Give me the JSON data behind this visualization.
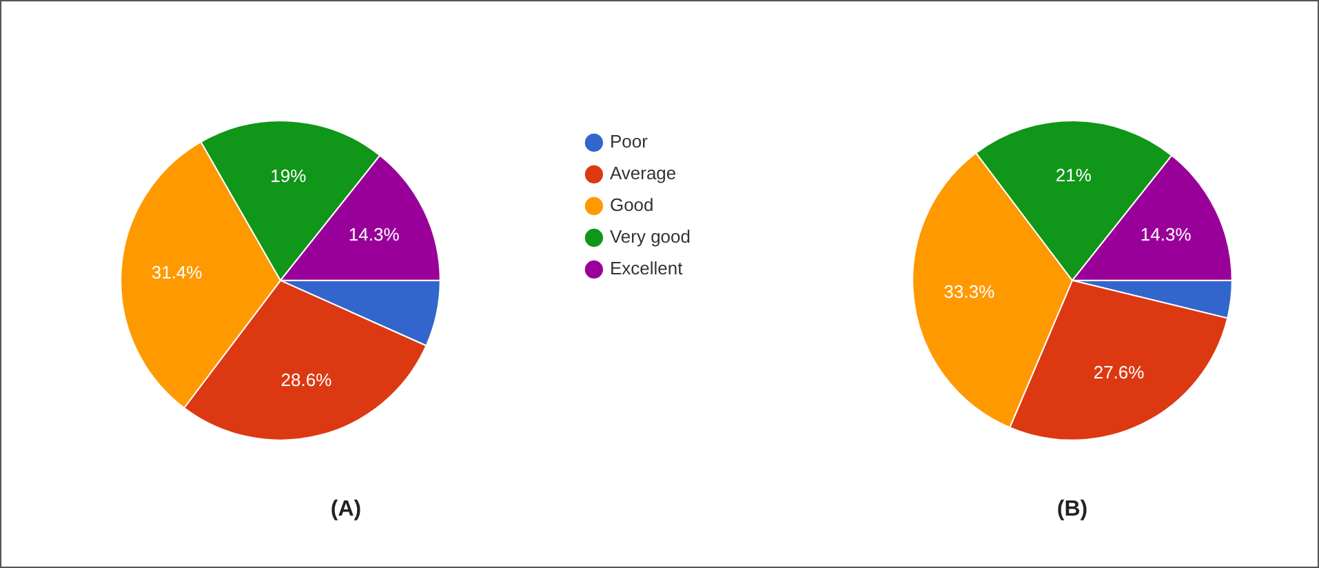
{
  "chart_data": [
    {
      "type": "pie",
      "title": "(A)",
      "categories": [
        "Poor",
        "Average",
        "Good",
        "Very good",
        "Excellent"
      ],
      "values": [
        6.7,
        28.6,
        31.4,
        19,
        14.3
      ],
      "value_labels": [
        null,
        "28.6%",
        "31.4%",
        "19%",
        "14.3%"
      ],
      "colors": [
        "#3366cc",
        "#dc3912",
        "#ff9900",
        "#109618",
        "#990099"
      ],
      "legend": "right"
    },
    {
      "type": "pie",
      "title": "(B)",
      "categories": [
        null,
        null,
        null,
        null,
        null
      ],
      "values": [
        3.8,
        27.6,
        33.3,
        21,
        14.3
      ],
      "value_labels": [
        null,
        "27.6%",
        "33.3%",
        "21%",
        "14.3%"
      ],
      "colors": [
        "#3366cc",
        "#dc3912",
        "#ff9900",
        "#109618",
        "#990099"
      ]
    }
  ]
}
